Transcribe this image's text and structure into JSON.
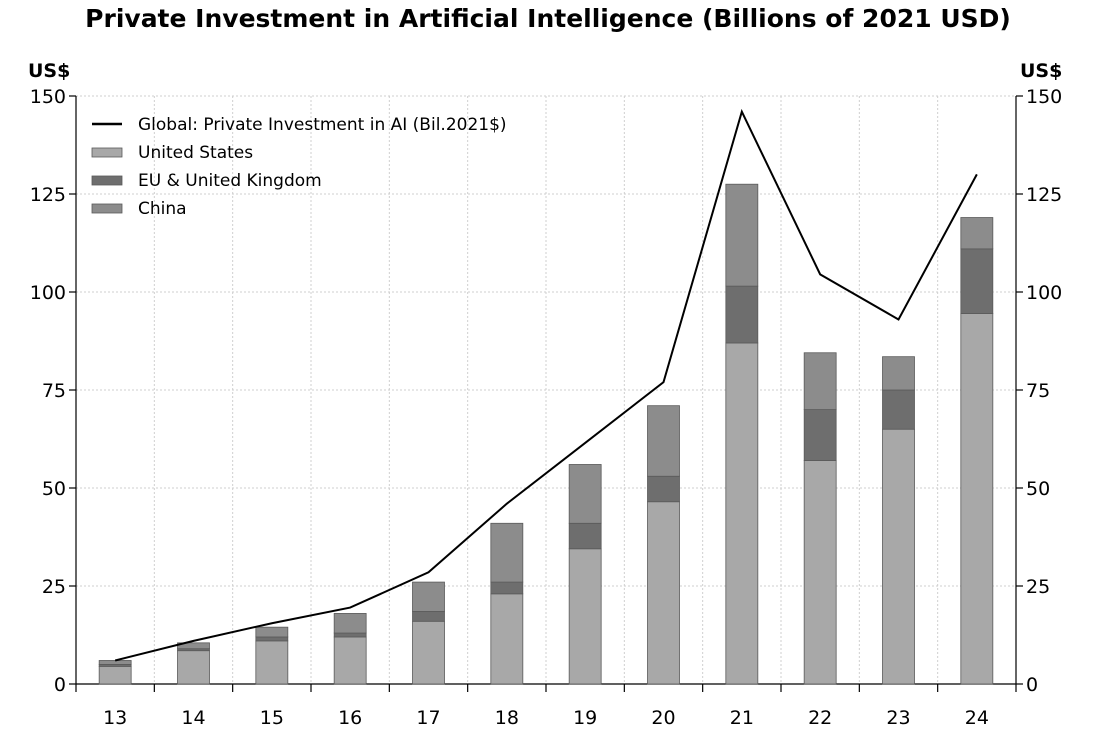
{
  "chart_data": {
    "type": "bar",
    "title": "Private Investment in Artificial Intelligence (Billions of 2021 USD)",
    "y_unit_left": "US$",
    "y_unit_right": "US$",
    "categories": [
      "13",
      "14",
      "15",
      "16",
      "17",
      "18",
      "19",
      "20",
      "21",
      "22",
      "23",
      "24"
    ],
    "stacked": true,
    "ylim": [
      0,
      150
    ],
    "yticks": [
      0,
      25,
      50,
      75,
      100,
      125,
      150
    ],
    "grid": true,
    "legend_position": "top-left",
    "series": [
      {
        "name": "United States",
        "kind": "bar",
        "color": "#a8a8a8",
        "values": [
          4.5,
          8.5,
          11,
          12,
          16,
          23,
          34.5,
          46.5,
          87,
          57,
          65,
          94.5
        ]
      },
      {
        "name": "EU & United Kingdom",
        "kind": "bar",
        "color": "#6e6e6e",
        "values": [
          0.5,
          0.5,
          1,
          1,
          2.5,
          3,
          6.5,
          6.5,
          14.5,
          13,
          10,
          16.5
        ]
      },
      {
        "name": "China",
        "kind": "bar",
        "color": "#8c8c8c",
        "values": [
          1,
          1.5,
          2.5,
          5,
          7.5,
          15,
          15,
          18,
          26,
          14.5,
          8.5,
          8
        ]
      },
      {
        "name": "Global: Private Investment in AI (Bil.2021$)",
        "kind": "line",
        "color": "#000000",
        "values": [
          6,
          11,
          15.5,
          19.5,
          28.5,
          46,
          61.5,
          77,
          146,
          104.5,
          93,
          130
        ]
      }
    ]
  }
}
